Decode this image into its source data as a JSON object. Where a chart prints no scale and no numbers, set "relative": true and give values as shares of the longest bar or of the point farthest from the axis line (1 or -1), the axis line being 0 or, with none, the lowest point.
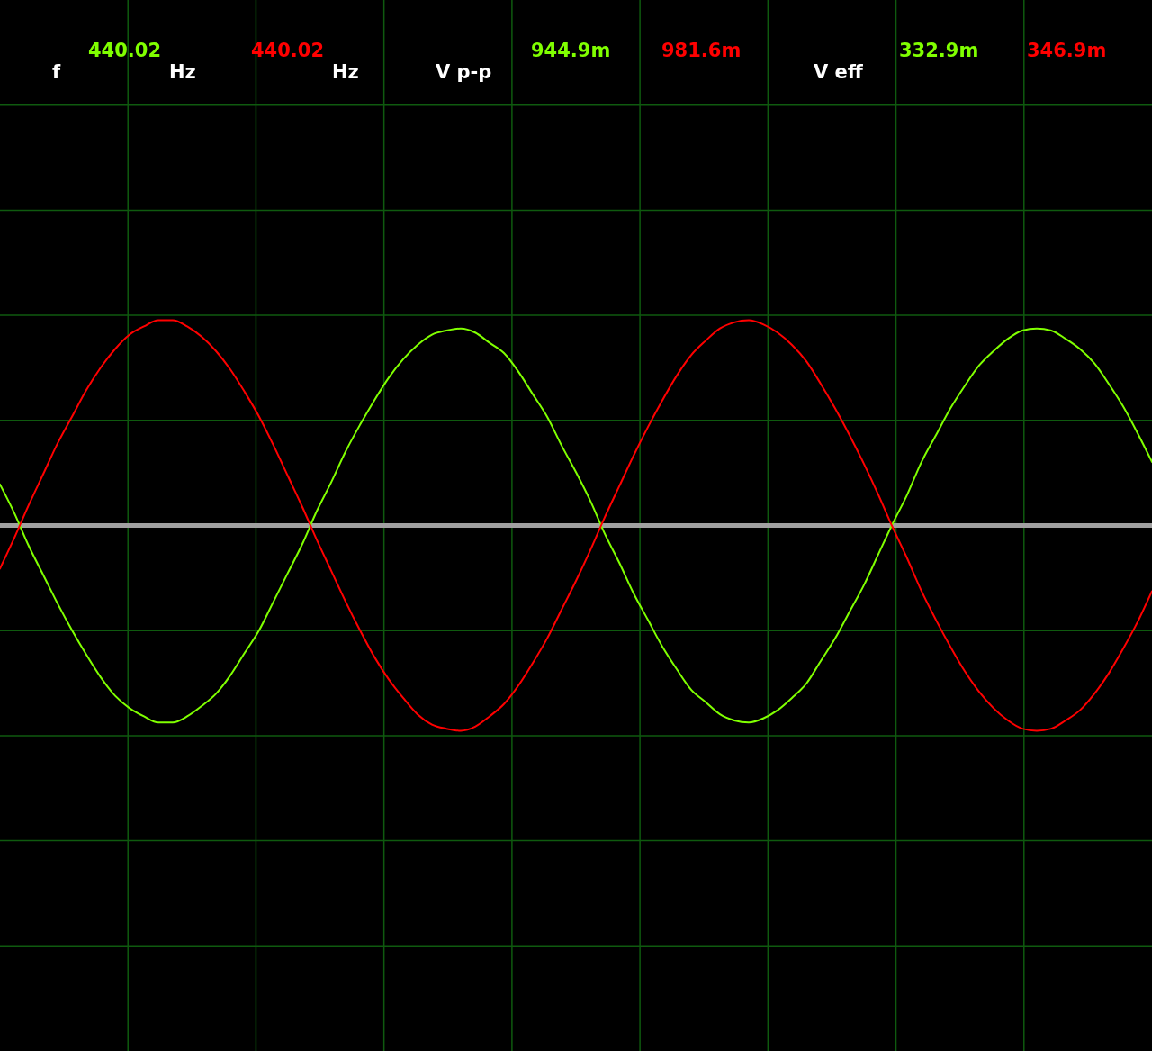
{
  "chart_data": {
    "type": "line",
    "relative": true,
    "categories": [
      null,
      null,
      null,
      null,
      null,
      null,
      null,
      null,
      null,
      null,
      null,
      null,
      null,
      null,
      null,
      null,
      null,
      null,
      null,
      null,
      null,
      null,
      null,
      null,
      null,
      null,
      null,
      null,
      null,
      null,
      null,
      null,
      null,
      null,
      null,
      null,
      null,
      null,
      null,
      null,
      null,
      null,
      null,
      null,
      null,
      null,
      null,
      null,
      null,
      null,
      null,
      null,
      null,
      null,
      null,
      null,
      null,
      null,
      null,
      null,
      null,
      null,
      null,
      null,
      null,
      null,
      null,
      null,
      null,
      null,
      null,
      null,
      null,
      null,
      null,
      null,
      null,
      null,
      null,
      null,
      null
    ],
    "series": [
      {
        "color": "#80ff00",
        "values": [
          0.2,
          0.06,
          -0.1,
          -0.24,
          -0.38,
          -0.51,
          -0.63,
          -0.74,
          -0.83,
          -0.89,
          -0.93,
          -0.96,
          -0.96,
          -0.93,
          -0.88,
          -0.82,
          -0.73,
          -0.62,
          -0.51,
          -0.37,
          -0.23,
          -0.09,
          0.07,
          0.21,
          0.36,
          0.49,
          0.61,
          0.72,
          0.81,
          0.88,
          0.93,
          0.95,
          0.96,
          0.94,
          0.89,
          0.84,
          0.75,
          0.64,
          0.53,
          0.39,
          0.26,
          0.12,
          -0.04,
          -0.18,
          -0.33,
          -0.46,
          -0.59,
          -0.7,
          -0.8,
          -0.86,
          -0.92,
          -0.95,
          -0.96,
          -0.94,
          -0.9,
          -0.84,
          -0.77,
          -0.66,
          -0.55,
          -0.42,
          -0.29,
          -0.14,
          0.01,
          0.15,
          0.31,
          0.44,
          0.57,
          0.68,
          0.78,
          0.85,
          0.91,
          0.95,
          0.96,
          0.95,
          0.91,
          0.86,
          0.79,
          0.69,
          0.58,
          0.45,
          0.31
        ]
      },
      {
        "color": "#ff0000",
        "values": [
          -0.21,
          -0.06,
          0.1,
          0.25,
          0.4,
          0.53,
          0.66,
          0.77,
          0.86,
          0.93,
          0.97,
          1.0,
          1.0,
          0.97,
          0.92,
          0.85,
          0.76,
          0.65,
          0.53,
          0.39,
          0.24,
          0.09,
          -0.07,
          -0.22,
          -0.37,
          -0.51,
          -0.64,
          -0.75,
          -0.84,
          -0.92,
          -0.97,
          -0.99,
          -1.0,
          -0.98,
          -0.93,
          -0.87,
          -0.78,
          -0.67,
          -0.55,
          -0.41,
          -0.27,
          -0.12,
          0.04,
          0.19,
          0.34,
          0.48,
          0.61,
          0.73,
          0.83,
          0.9,
          0.96,
          0.99,
          1.0,
          0.98,
          0.94,
          0.88,
          0.8,
          0.69,
          0.57,
          0.44,
          0.3,
          0.15,
          -0.01,
          -0.16,
          -0.32,
          -0.46,
          -0.59,
          -0.71,
          -0.81,
          -0.89,
          -0.95,
          -0.99,
          -1.0,
          -0.99,
          -0.95,
          -0.9,
          -0.82,
          -0.72,
          -0.6,
          -0.47,
          -0.32
        ]
      }
    ],
    "grid": true,
    "ref_lines": [
      {
        "axis": "y",
        "value": 0,
        "color": "#a0a0a0"
      }
    ],
    "annotations": [
      "f",
      "440.02",
      "Hz",
      "440.02",
      "Hz",
      "V p-p",
      "944.9m",
      "981.6m",
      "V eff",
      "332.9m",
      "346.9m"
    ]
  }
}
